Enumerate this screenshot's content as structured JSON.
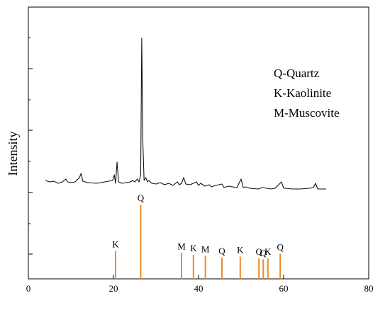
{
  "chart_data": {
    "type": "line",
    "xlim": [
      0,
      80
    ],
    "x_ticks": [
      0,
      20,
      40,
      60,
      80
    ],
    "ylabel": "Intensity",
    "legend": {
      "placement": "top-right",
      "entries": [
        "Q-Quartz",
        "K-Kaolinite",
        "M-Muscovite"
      ]
    },
    "line_color": "#111111",
    "reference_color": "#f08a24",
    "pattern": {
      "x": [
        4,
        5,
        6,
        7,
        8,
        8.8,
        9.2,
        10,
        11,
        12,
        12.4,
        12.8,
        14,
        16,
        18,
        19.8,
        20.2,
        20.5,
        20.85,
        21.2,
        22,
        23,
        24,
        24.5,
        25,
        25.6,
        26,
        26.4,
        26.65,
        26.9,
        27.2,
        27.6,
        28.0,
        28.3,
        29,
        30,
        31,
        32,
        33,
        34,
        35,
        35.5,
        36,
        36.5,
        37,
        38,
        39.5,
        40,
        40.5,
        41.5,
        42.5,
        43,
        44,
        45.5,
        46,
        47,
        48,
        49,
        50,
        50.5,
        51,
        52,
        54,
        55,
        56,
        57,
        58,
        59.5,
        60,
        60.5,
        62,
        64,
        66,
        67,
        67.5,
        68,
        69,
        70
      ],
      "y": [
        14,
        12,
        13,
        10,
        12,
        16,
        12,
        11,
        12,
        18,
        24,
        13,
        11,
        10,
        12,
        14,
        22,
        10,
        40,
        12,
        10,
        11,
        12,
        14,
        12,
        16,
        12,
        22,
        215,
        70,
        14,
        18,
        12,
        14,
        10,
        9,
        11,
        8,
        10,
        7,
        12,
        8,
        10,
        18,
        9,
        8,
        12,
        7,
        10,
        6,
        8,
        5,
        7,
        9,
        4,
        6,
        5,
        4,
        16,
        4,
        5,
        3,
        2,
        4,
        3,
        2,
        3,
        12,
        3,
        3,
        2,
        2,
        3,
        4,
        10,
        2,
        2,
        2
      ]
    },
    "reference": {
      "x": [
        20.5,
        26.4,
        36,
        38.8,
        41.6,
        45.5,
        49.8,
        54.2,
        55.2,
        56.3,
        59.2
      ],
      "y": [
        30,
        80,
        28,
        26,
        25,
        23,
        24,
        22,
        21,
        22,
        27
      ],
      "labels": [
        "K",
        "Q",
        "M",
        "K",
        "M",
        "Q",
        "K",
        "Q",
        "Q",
        "K",
        "Q"
      ]
    }
  }
}
